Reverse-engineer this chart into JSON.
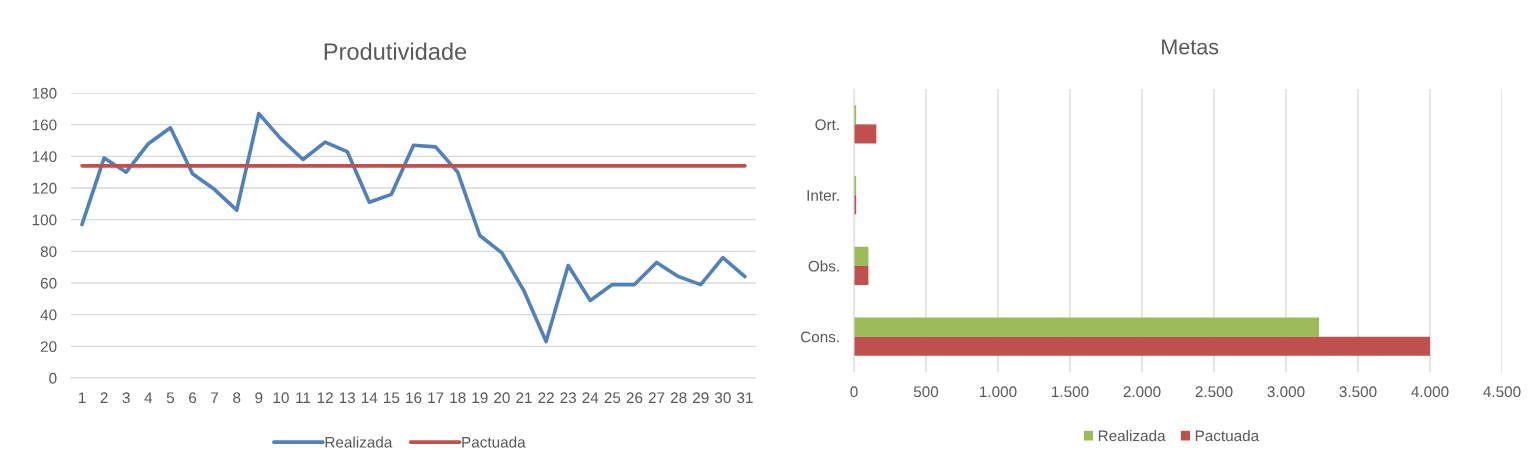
{
  "chart_data": [
    {
      "type": "line",
      "title": "Produtividade",
      "categories": [
        "1",
        "2",
        "3",
        "4",
        "5",
        "6",
        "7",
        "8",
        "9",
        "10",
        "11",
        "12",
        "13",
        "14",
        "15",
        "16",
        "17",
        "18",
        "19",
        "20",
        "21",
        "22",
        "23",
        "24",
        "25",
        "26",
        "27",
        "28",
        "29",
        "30",
        "31"
      ],
      "series": [
        {
          "name": "Realizada",
          "color": "#4f81bd",
          "values": [
            97,
            139,
            130,
            148,
            158,
            129,
            119,
            106,
            167,
            151,
            138,
            149,
            143,
            111,
            116,
            147,
            146,
            130,
            90,
            79,
            55,
            23,
            71,
            49,
            59,
            59,
            73,
            64,
            59,
            76,
            64
          ]
        },
        {
          "name": "Pactuada",
          "color": "#c0504d",
          "values": [
            134,
            134,
            134,
            134,
            134,
            134,
            134,
            134,
            134,
            134,
            134,
            134,
            134,
            134,
            134,
            134,
            134,
            134,
            134,
            134,
            134,
            134,
            134,
            134,
            134,
            134,
            134,
            134,
            134,
            134,
            134
          ]
        }
      ],
      "ylim": [
        0,
        180
      ],
      "yticks": [
        0,
        20,
        40,
        60,
        80,
        100,
        120,
        140,
        160,
        180
      ],
      "grid": "y",
      "legend": "bottom"
    },
    {
      "type": "bar",
      "orientation": "horizontal",
      "title": "Metas",
      "categories": [
        "Ort.",
        "Inter.",
        "Obs.",
        "Cons."
      ],
      "series": [
        {
          "name": "Realizada",
          "color": "#9bbb59",
          "values": [
            15,
            15,
            100,
            3230
          ]
        },
        {
          "name": "Pactuada",
          "color": "#c0504d",
          "values": [
            155,
            15,
            100,
            4000
          ]
        }
      ],
      "xlim": [
        0,
        4500
      ],
      "xticks": [
        0,
        500,
        {
          "value": 1000,
          "label": "1.000"
        },
        {
          "value": 1500,
          "label": "1.500"
        },
        {
          "value": 2000,
          "label": "2.000"
        },
        {
          "value": 2500,
          "label": "2.500"
        },
        {
          "value": 3000,
          "label": "3.000"
        },
        {
          "value": 3500,
          "label": "3.500"
        },
        {
          "value": 4000,
          "label": "4.000"
        },
        {
          "value": 4500,
          "label": "4.500"
        }
      ],
      "grid": "x",
      "legend": "bottom"
    }
  ]
}
